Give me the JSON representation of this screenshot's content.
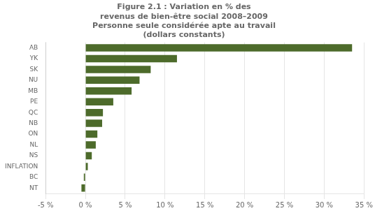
{
  "chart_data": {
    "type": "bar",
    "orientation": "horizontal",
    "title": "Figure 2.1 : Variation en % des\nrevenus de bien-être social 2008–2009\nPersonne seule considérée apte au travail\n(dollars constants)",
    "categories": [
      "AB",
      "YK",
      "SK",
      "NU",
      "MB",
      "PE",
      "QC",
      "NB",
      "ON",
      "NL",
      "NS",
      "INFLATION",
      "BC",
      "NT"
    ],
    "values": [
      33.5,
      11.5,
      8.2,
      6.8,
      5.8,
      3.5,
      2.2,
      2.1,
      1.5,
      1.3,
      0.8,
      0.3,
      -0.2,
      -0.5
    ],
    "color": "#4d6b2b",
    "xlim": [
      -5,
      35
    ],
    "xticks": [
      {
        "value": -5,
        "label": "-5 %"
      },
      {
        "value": 0,
        "label": "0 %"
      },
      {
        "value": 5,
        "label": "5 %"
      },
      {
        "value": 10,
        "label": "10 %"
      },
      {
        "value": 15,
        "label": "15 %"
      },
      {
        "value": 20,
        "label": "20 %"
      },
      {
        "value": 25,
        "label": "25 %"
      },
      {
        "value": 30,
        "label": "30 %"
      },
      {
        "value": 35,
        "label": "35 %"
      }
    ],
    "grid": true
  }
}
